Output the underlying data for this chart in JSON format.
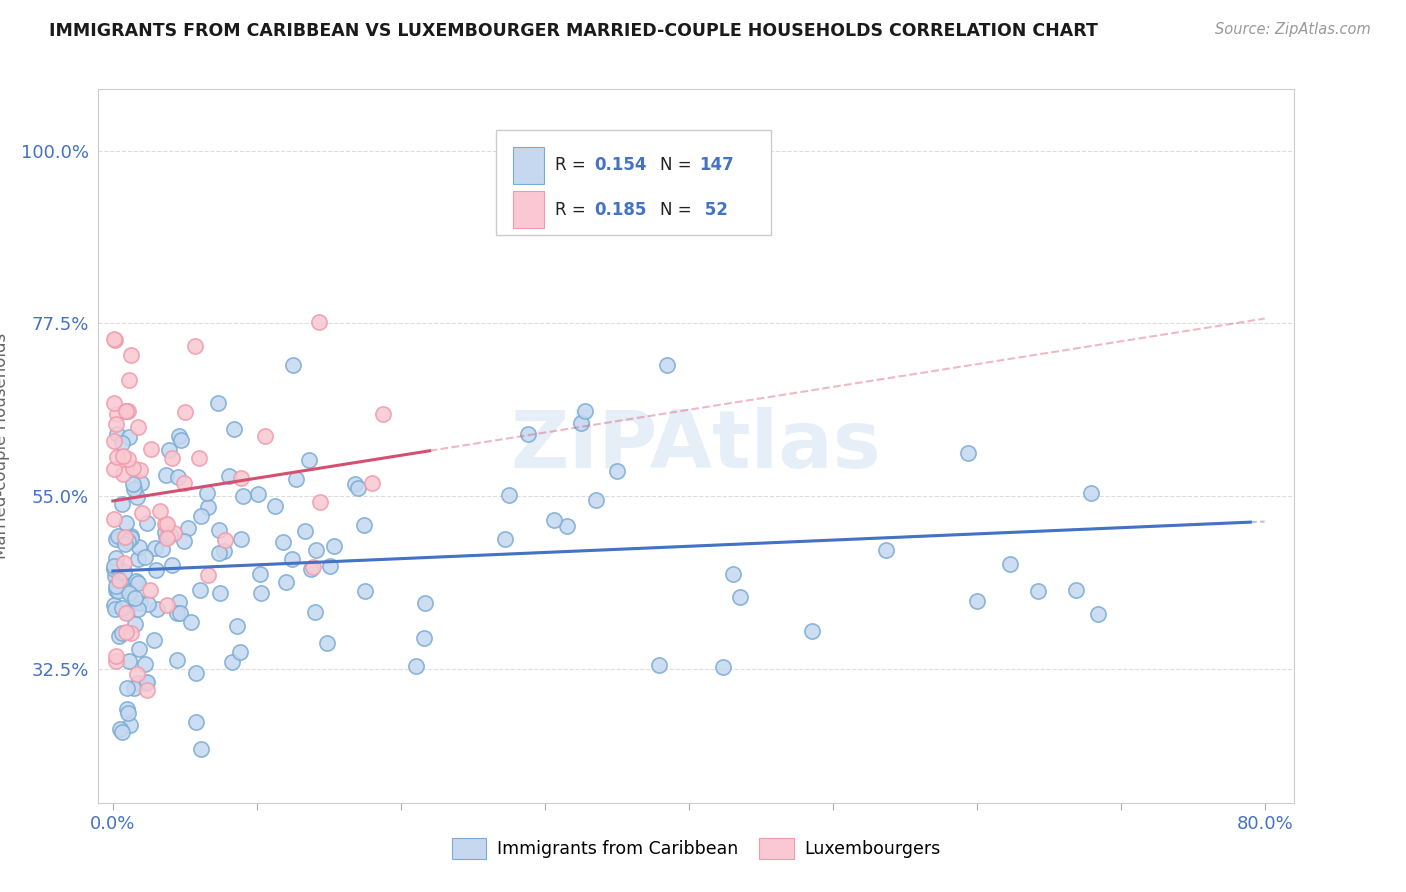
{
  "title": "IMMIGRANTS FROM CARIBBEAN VS LUXEMBOURGER MARRIED-COUPLE HOUSEHOLDS CORRELATION CHART",
  "source": "Source: ZipAtlas.com",
  "ylabel": "Married-couple Households",
  "xlim": [
    -0.01,
    0.82
  ],
  "ylim": [
    0.15,
    1.08
  ],
  "x_ticks": [
    0.0,
    0.1,
    0.2,
    0.3,
    0.4,
    0.5,
    0.6,
    0.7,
    0.8
  ],
  "x_tick_labels": [
    "0.0%",
    "",
    "",
    "",
    "",
    "",
    "",
    "",
    "80.0%"
  ],
  "y_ticks": [
    0.325,
    0.55,
    0.775,
    1.0
  ],
  "y_tick_labels": [
    "32.5%",
    "55.0%",
    "77.5%",
    "100.0%"
  ],
  "legend1_R": "0.154",
  "legend1_N": "147",
  "legend2_R": "0.185",
  "legend2_N": "52",
  "color_blue_fill": "#c5d8f0",
  "color_blue_edge": "#7aabd4",
  "color_pink_fill": "#fac8d2",
  "color_pink_edge": "#f09aaa",
  "color_line_blue": "#4472c4",
  "color_line_pink": "#d45070",
  "color_tick_label": "#4472c4",
  "color_axis_label": "#666666",
  "color_title": "#1a1a1a",
  "color_source": "#999999",
  "color_grid": "#dddddd",
  "watermark_color": "#dce8f5",
  "watermark_alpha": 0.7
}
